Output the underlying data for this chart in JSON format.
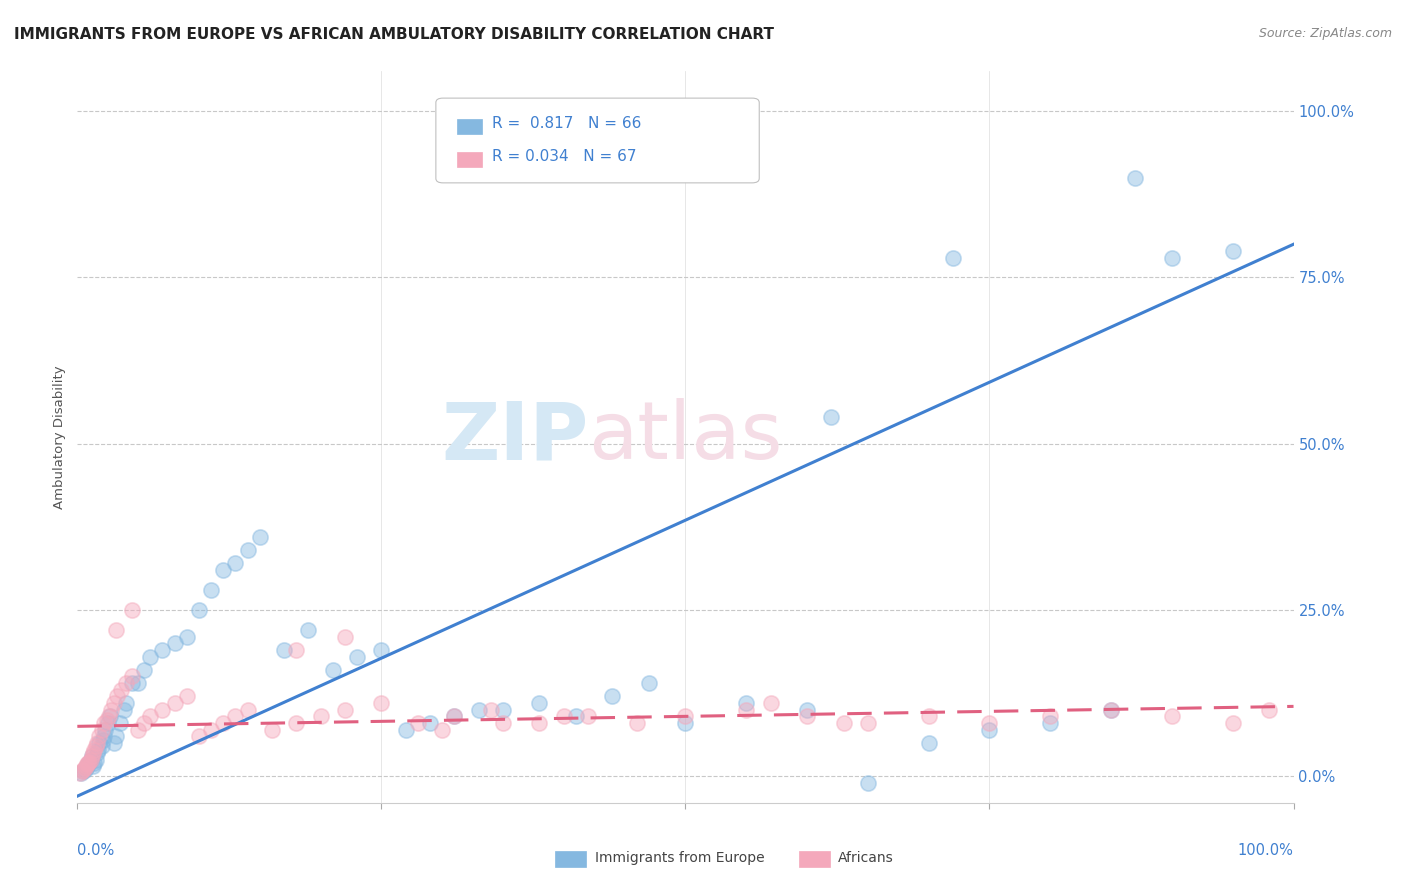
{
  "title": "IMMIGRANTS FROM EUROPE VS AFRICAN AMBULATORY DISABILITY CORRELATION CHART",
  "source": "Source: ZipAtlas.com",
  "ylabel": "Ambulatory Disability",
  "ytick_values": [
    0.0,
    25.0,
    50.0,
    75.0,
    100.0
  ],
  "legend_blue_r": "0.817",
  "legend_blue_n": "66",
  "legend_pink_r": "0.034",
  "legend_pink_n": "67",
  "legend_blue_label": "Immigrants from Europe",
  "legend_pink_label": "Africans",
  "blue_color": "#85B8E0",
  "pink_color": "#F4A8BB",
  "blue_line_color": "#4080D0",
  "pink_line_color": "#E06080",
  "xmin": 0,
  "xmax": 100,
  "ymin": -4,
  "ymax": 106,
  "background_color": "#ffffff",
  "grid_color": "#c8c8c8",
  "blue_scatter_x": [
    0.3,
    0.5,
    0.6,
    0.7,
    0.8,
    0.9,
    1.0,
    1.1,
    1.2,
    1.3,
    1.4,
    1.5,
    1.6,
    1.7,
    1.8,
    2.0,
    2.1,
    2.2,
    2.3,
    2.5,
    2.7,
    3.0,
    3.2,
    3.5,
    3.8,
    4.0,
    4.5,
    5.0,
    5.5,
    6.0,
    7.0,
    8.0,
    9.0,
    10.0,
    11.0,
    12.0,
    13.0,
    14.0,
    15.0,
    17.0,
    19.0,
    21.0,
    23.0,
    25.0,
    27.0,
    29.0,
    31.0,
    33.0,
    35.0,
    38.0,
    41.0,
    44.0,
    47.0,
    50.0,
    55.0,
    60.0,
    65.0,
    70.0,
    75.0,
    80.0,
    85.0,
    90.0,
    95.0,
    87.0,
    72.0,
    62.0
  ],
  "blue_scatter_y": [
    0.5,
    0.8,
    1.0,
    1.2,
    1.5,
    1.8,
    2.0,
    2.5,
    3.0,
    1.5,
    2.0,
    2.5,
    3.5,
    4.0,
    5.0,
    4.5,
    5.5,
    6.0,
    7.0,
    8.0,
    9.0,
    5.0,
    6.0,
    8.0,
    10.0,
    11.0,
    14.0,
    14.0,
    16.0,
    18.0,
    19.0,
    20.0,
    21.0,
    25.0,
    28.0,
    31.0,
    32.0,
    34.0,
    36.0,
    19.0,
    22.0,
    16.0,
    18.0,
    19.0,
    7.0,
    8.0,
    9.0,
    10.0,
    10.0,
    11.0,
    9.0,
    12.0,
    14.0,
    8.0,
    11.0,
    10.0,
    -1.0,
    5.0,
    7.0,
    8.0,
    10.0,
    78.0,
    79.0,
    90.0,
    78.0,
    54.0
  ],
  "pink_scatter_x": [
    0.2,
    0.4,
    0.5,
    0.6,
    0.7,
    0.8,
    0.9,
    1.0,
    1.1,
    1.2,
    1.3,
    1.4,
    1.5,
    1.6,
    1.8,
    2.0,
    2.2,
    2.4,
    2.6,
    2.8,
    3.0,
    3.3,
    3.6,
    4.0,
    4.5,
    5.0,
    5.5,
    6.0,
    7.0,
    8.0,
    9.0,
    10.0,
    11.0,
    12.0,
    13.0,
    14.0,
    16.0,
    18.0,
    20.0,
    22.0,
    25.0,
    28.0,
    31.0,
    34.0,
    38.0,
    42.0,
    46.0,
    50.0,
    55.0,
    60.0,
    65.0,
    70.0,
    75.0,
    80.0,
    85.0,
    90.0,
    95.0,
    98.0,
    63.0,
    57.0,
    40.0,
    35.0,
    30.0,
    22.0,
    18.0,
    4.5,
    3.2
  ],
  "pink_scatter_y": [
    0.5,
    0.8,
    1.0,
    1.2,
    1.5,
    1.8,
    2.0,
    2.2,
    2.5,
    3.0,
    3.5,
    4.0,
    4.5,
    5.0,
    6.0,
    7.0,
    8.0,
    8.5,
    9.0,
    10.0,
    11.0,
    12.0,
    13.0,
    14.0,
    15.0,
    7.0,
    8.0,
    9.0,
    10.0,
    11.0,
    12.0,
    6.0,
    7.0,
    8.0,
    9.0,
    10.0,
    7.0,
    8.0,
    9.0,
    10.0,
    11.0,
    8.0,
    9.0,
    10.0,
    8.0,
    9.0,
    8.0,
    9.0,
    10.0,
    9.0,
    8.0,
    9.0,
    8.0,
    9.0,
    10.0,
    9.0,
    8.0,
    10.0,
    8.0,
    11.0,
    9.0,
    8.0,
    7.0,
    21.0,
    19.0,
    25.0,
    22.0
  ],
  "blue_line_x": [
    0,
    100
  ],
  "blue_line_y": [
    -3,
    80
  ],
  "pink_line_x": [
    0,
    100
  ],
  "pink_line_y": [
    7.5,
    10.5
  ],
  "watermark_zip_color": "#d5e8f5",
  "watermark_atlas_color": "#f5dde6",
  "title_fontsize": 11,
  "source_fontsize": 9
}
